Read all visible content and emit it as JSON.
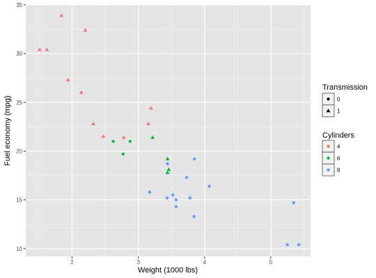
{
  "chart_data": {
    "type": "scatter",
    "title": "",
    "xlabel": "Weight (1000 lbs)",
    "ylabel": "Fuel economy (mpg)",
    "xlim": [
      1.3,
      5.6
    ],
    "ylim": [
      9.2,
      35.0
    ],
    "x_ticks": [
      2,
      3,
      4,
      5
    ],
    "y_ticks": [
      10,
      15,
      20,
      25,
      30,
      35
    ],
    "grid": true,
    "background": "#e5e5e5",
    "legend_placement": "right",
    "legend": {
      "shape": {
        "title": "Transmission",
        "entries": [
          {
            "label": "0",
            "shape": "circle"
          },
          {
            "label": "1",
            "shape": "triangle"
          }
        ]
      },
      "color": {
        "title": "Cylinders",
        "entries": [
          {
            "label": "4",
            "color": "#F8766D"
          },
          {
            "label": "6",
            "color": "#00BA38"
          },
          {
            "label": "8",
            "color": "#619CFF"
          }
        ]
      }
    },
    "points": [
      {
        "x": 1.51,
        "y": 30.4,
        "cyl": "4",
        "am": "1"
      },
      {
        "x": 1.62,
        "y": 30.4,
        "cyl": "4",
        "am": "1"
      },
      {
        "x": 1.84,
        "y": 33.9,
        "cyl": "4",
        "am": "1"
      },
      {
        "x": 1.94,
        "y": 27.3,
        "cyl": "4",
        "am": "1"
      },
      {
        "x": 2.14,
        "y": 26.0,
        "cyl": "4",
        "am": "1"
      },
      {
        "x": 2.2,
        "y": 32.4,
        "cyl": "4",
        "am": "1"
      },
      {
        "x": 2.32,
        "y": 22.8,
        "cyl": "4",
        "am": "1"
      },
      {
        "x": 2.47,
        "y": 21.5,
        "cyl": "4",
        "am": "1"
      },
      {
        "x": 2.78,
        "y": 21.4,
        "cyl": "4",
        "am": "1"
      },
      {
        "x": 3.15,
        "y": 22.8,
        "cyl": "4",
        "am": "1"
      },
      {
        "x": 3.19,
        "y": 24.4,
        "cyl": "4",
        "am": "1"
      },
      {
        "x": 2.62,
        "y": 21.0,
        "cyl": "6",
        "am": "0"
      },
      {
        "x": 2.77,
        "y": 19.7,
        "cyl": "6",
        "am": "0"
      },
      {
        "x": 2.875,
        "y": 21.0,
        "cyl": "6",
        "am": "0"
      },
      {
        "x": 3.215,
        "y": 21.4,
        "cyl": "6",
        "am": "1"
      },
      {
        "x": 3.44,
        "y": 19.2,
        "cyl": "6",
        "am": "1"
      },
      {
        "x": 3.44,
        "y": 17.8,
        "cyl": "6",
        "am": "1"
      },
      {
        "x": 3.46,
        "y": 18.1,
        "cyl": "6",
        "am": "1"
      },
      {
        "x": 3.17,
        "y": 15.8,
        "cyl": "8",
        "am": "0"
      },
      {
        "x": 3.435,
        "y": 15.2,
        "cyl": "8",
        "am": "0"
      },
      {
        "x": 3.44,
        "y": 18.7,
        "cyl": "8",
        "am": "0"
      },
      {
        "x": 3.52,
        "y": 15.5,
        "cyl": "8",
        "am": "0"
      },
      {
        "x": 3.57,
        "y": 15.0,
        "cyl": "8",
        "am": "0"
      },
      {
        "x": 3.57,
        "y": 14.3,
        "cyl": "8",
        "am": "0"
      },
      {
        "x": 3.73,
        "y": 17.3,
        "cyl": "8",
        "am": "0"
      },
      {
        "x": 3.78,
        "y": 15.2,
        "cyl": "8",
        "am": "0"
      },
      {
        "x": 3.84,
        "y": 13.3,
        "cyl": "8",
        "am": "0"
      },
      {
        "x": 3.845,
        "y": 19.2,
        "cyl": "8",
        "am": "0"
      },
      {
        "x": 4.07,
        "y": 16.4,
        "cyl": "8",
        "am": "0"
      },
      {
        "x": 5.25,
        "y": 10.4,
        "cyl": "8",
        "am": "0"
      },
      {
        "x": 5.345,
        "y": 14.7,
        "cyl": "8",
        "am": "0"
      },
      {
        "x": 5.424,
        "y": 10.4,
        "cyl": "8",
        "am": "0"
      }
    ]
  }
}
